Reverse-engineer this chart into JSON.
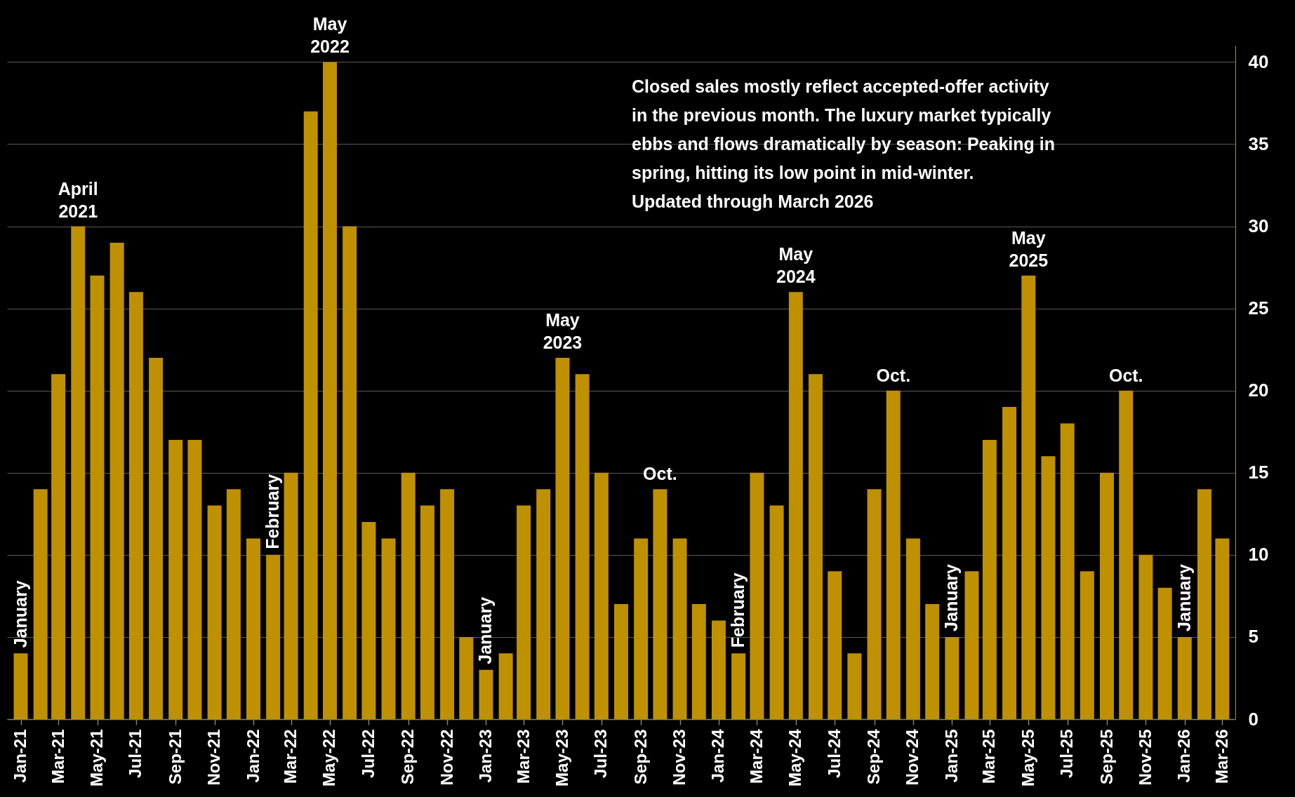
{
  "chart_data": {
    "type": "bar",
    "color": "#bf9000",
    "x": [
      "2021-01",
      "2021-02",
      "2021-03",
      "2021-04",
      "2021-05",
      "2021-06",
      "2021-07",
      "2021-08",
      "2021-09",
      "2021-10",
      "2021-11",
      "2021-12",
      "2022-01",
      "2022-02",
      "2022-03",
      "2022-04",
      "2022-05",
      "2022-06",
      "2022-07",
      "2022-08",
      "2022-09",
      "2022-10",
      "2022-11",
      "2022-12",
      "2023-01",
      "2023-02",
      "2023-03",
      "2023-04",
      "2023-05",
      "2023-06",
      "2023-07",
      "2023-08",
      "2023-09",
      "2023-10",
      "2023-11",
      "2023-12",
      "2024-01",
      "2024-02",
      "2024-03",
      "2024-04",
      "2024-05",
      "2024-06",
      "2024-07",
      "2024-08",
      "2024-09",
      "2024-10",
      "2024-11",
      "2024-12",
      "2025-01",
      "2025-02",
      "2025-03",
      "2025-04",
      "2025-05",
      "2025-06",
      "2025-07",
      "2025-08",
      "2025-09",
      "2025-10",
      "2025-11",
      "2025-12",
      "2026-01",
      "2026-02",
      "2026-03"
    ],
    "values": [
      4,
      14,
      21,
      30,
      27,
      29,
      26,
      22,
      17,
      17,
      13,
      14,
      11,
      10,
      15,
      37,
      40,
      30,
      12,
      11,
      15,
      13,
      14,
      5,
      3,
      4,
      13,
      14,
      22,
      21,
      15,
      7,
      11,
      14,
      11,
      7,
      6,
      4,
      15,
      13,
      26,
      21,
      9,
      4,
      14,
      20,
      11,
      7,
      5,
      9,
      17,
      19,
      27,
      16,
      18,
      9,
      15,
      20,
      10,
      8,
      5,
      14,
      11
    ],
    "xlim": [
      "2020-12-16",
      "2026-03-16"
    ],
    "xticks": [
      {
        "value": "2021-01",
        "label": "Jan-21"
      },
      {
        "value": "2021-03",
        "label": "Mar-21"
      },
      {
        "value": "2021-05",
        "label": "May-21"
      },
      {
        "value": "2021-07",
        "label": "Jul-21"
      },
      {
        "value": "2021-09",
        "label": "Sep-21"
      },
      {
        "value": "2021-11",
        "label": "Nov-21"
      },
      {
        "value": "2022-01",
        "label": "Jan-22"
      },
      {
        "value": "2022-03",
        "label": "Mar-22"
      },
      {
        "value": "2022-05",
        "label": "May-22"
      },
      {
        "value": "2022-07",
        "label": "Jul-22"
      },
      {
        "value": "2022-09",
        "label": "Sep-22"
      },
      {
        "value": "2022-11",
        "label": "Nov-22"
      },
      {
        "value": "2023-01",
        "label": "Jan-23"
      },
      {
        "value": "2023-03",
        "label": "Mar-23"
      },
      {
        "value": "2023-05",
        "label": "May-23"
      },
      {
        "value": "2023-07",
        "label": "Jul-23"
      },
      {
        "value": "2023-09",
        "label": "Sep-23"
      },
      {
        "value": "2023-11",
        "label": "Nov-23"
      },
      {
        "value": "2024-01",
        "label": "Jan-24"
      },
      {
        "value": "2024-03",
        "label": "Mar-24"
      },
      {
        "value": "2024-05",
        "label": "May-24"
      },
      {
        "value": "2024-07",
        "label": "Jul-24"
      },
      {
        "value": "2024-09",
        "label": "Sep-24"
      },
      {
        "value": "2024-11",
        "label": "Nov-24"
      },
      {
        "value": "2025-01",
        "label": "Jan-25"
      },
      {
        "value": "2025-03",
        "label": "Mar-25"
      },
      {
        "value": "2025-05",
        "label": "May-25"
      },
      {
        "value": "2025-07",
        "label": "Jul-25"
      },
      {
        "value": "2025-09",
        "label": "Sep-25"
      },
      {
        "value": "2025-11",
        "label": "Nov-25"
      },
      {
        "value": "2026-01",
        "label": "Jan-26"
      },
      {
        "value": "2026-03",
        "label": "Mar-26"
      }
    ],
    "ylim": [
      0,
      41
    ],
    "yticks": [
      0,
      5,
      10,
      15,
      20,
      25,
      30,
      35,
      40
    ],
    "grid": "y",
    "annotations": [
      "Closed sales mostly reflect accepted-offer activity in the previous month. The luxury market typically ebbs and flows dramatically by season: Peaking in spring, hitting its low point in mid-winter.",
      "Updated through March 2026",
      {
        "text": "January",
        "x": "2021-01",
        "y": 4
      },
      {
        "text": "April 2021",
        "x": "2021-04",
        "y": 30
      },
      {
        "text": "February",
        "x": "2022-02",
        "y": 10
      },
      {
        "text": "May 2022",
        "x": "2022-05",
        "y": 40
      },
      {
        "text": "January",
        "x": "2023-01",
        "y": 3
      },
      {
        "text": "May 2023",
        "x": "2023-05",
        "y": 22
      },
      {
        "text": "Oct.",
        "x": "2023-10",
        "y": 14
      },
      {
        "text": "February",
        "x": "2024-02",
        "y": 4
      },
      {
        "text": "May 2024",
        "x": "2024-05",
        "y": 26
      },
      {
        "text": "Oct.",
        "x": "2024-10",
        "y": 20
      },
      {
        "text": "January",
        "x": "2025-01",
        "y": 5
      },
      {
        "text": "May 2025",
        "x": "2025-05",
        "y": 27
      },
      {
        "text": "Oct.",
        "x": "2025-10",
        "y": 20
      },
      {
        "text": "January",
        "x": "2026-01",
        "y": 5
      }
    ]
  }
}
